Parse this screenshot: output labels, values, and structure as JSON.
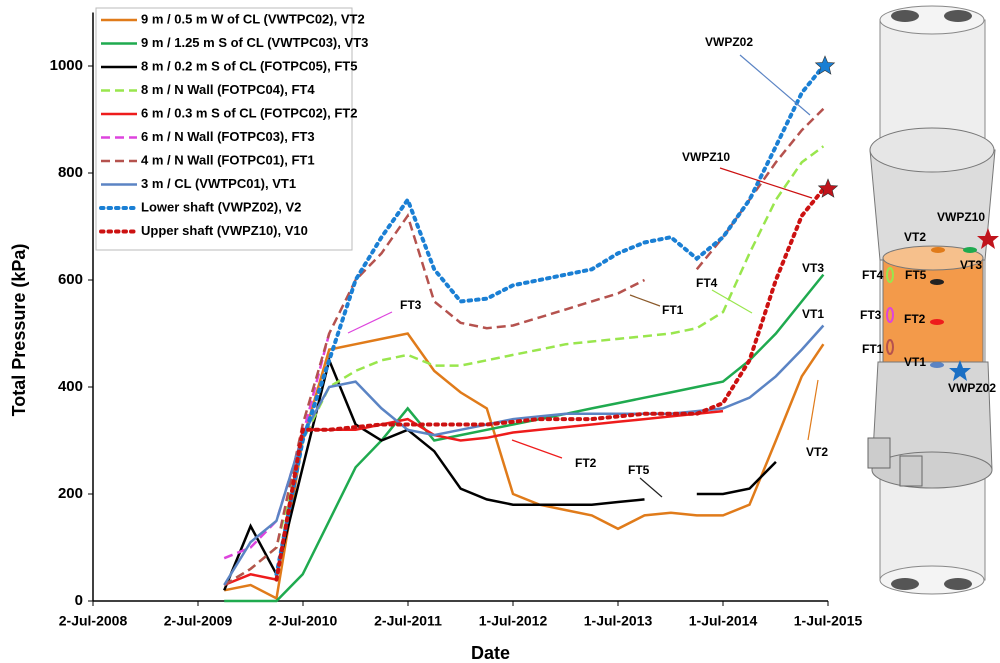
{
  "chart_data": {
    "type": "line",
    "x_label": "Date",
    "y_label": "Total Pressure (kPa)",
    "x": [
      "2009-10-01",
      "2010-01-01",
      "2010-04-01",
      "2010-07-01",
      "2010-10-01",
      "2011-01-01",
      "2011-04-01",
      "2011-07-01",
      "2011-10-01",
      "2012-01-01",
      "2012-04-01",
      "2012-07-01",
      "2012-10-01",
      "2013-01-01",
      "2013-04-01",
      "2013-07-01",
      "2013-10-01",
      "2014-01-01",
      "2014-04-01",
      "2014-07-01",
      "2014-10-01",
      "2015-01-01",
      "2015-04-01",
      "2015-06-15"
    ],
    "xlim": [
      "2008-07-02",
      "2015-07-01"
    ],
    "xticks": [
      {
        "value": "2008-07-02",
        "label": "2-Jul-2008"
      },
      {
        "value": "2009-07-02",
        "label": "2-Jul-2009"
      },
      {
        "value": "2010-07-02",
        "label": "2-Jul-2010"
      },
      {
        "value": "2011-07-02",
        "label": "2-Jul-2011"
      },
      {
        "value": "2012-07-01",
        "label": "1-Jul-2012"
      },
      {
        "value": "2013-07-01",
        "label": "1-Jul-2013"
      },
      {
        "value": "2014-07-01",
        "label": "1-Jul-2014"
      },
      {
        "value": "2015-07-01",
        "label": "1-Jul-2015"
      }
    ],
    "ylim": [
      0,
      1100
    ],
    "yticks": [
      0,
      200,
      400,
      600,
      800,
      1000
    ],
    "series": [
      {
        "name": "9 m / 0.5 m W of CL (VWTPC02), VT2",
        "color": "#e07b1a",
        "dash": "solid",
        "values": [
          20,
          30,
          5,
          300,
          470,
          480,
          490,
          500,
          430,
          390,
          360,
          200,
          180,
          170,
          160,
          135,
          160,
          165,
          160,
          160,
          180,
          300,
          420,
          480
        ]
      },
      {
        "name": "9 m / 1.25 m S of CL (VWTPC03), VT3",
        "color": "#1faa4f",
        "dash": "solid",
        "values": [
          0,
          0,
          0,
          50,
          150,
          250,
          300,
          360,
          300,
          310,
          320,
          330,
          340,
          350,
          360,
          370,
          380,
          390,
          400,
          410,
          450,
          500,
          560,
          610
        ]
      },
      {
        "name": "8 m / 0.2 m S of CL (FOTPC05), FT5",
        "color": "#000000",
        "dash": "solid",
        "values": [
          20,
          140,
          50,
          250,
          450,
          330,
          300,
          320,
          280,
          210,
          190,
          180,
          180,
          180,
          180,
          185,
          190,
          null,
          200,
          200,
          210,
          260,
          null,
          null
        ]
      },
      {
        "name": "8 m / N Wall (FOTPC04), FT4",
        "color": "#99e64d",
        "dash": "dashed",
        "values": [
          30,
          60,
          100,
          300,
          400,
          430,
          450,
          460,
          440,
          440,
          450,
          460,
          470,
          480,
          485,
          490,
          495,
          500,
          510,
          540,
          650,
          750,
          820,
          850
        ]
      },
      {
        "name": "6 m / 0.3 m S of CL (FOTPC02), FT2",
        "color": "#ee1c1c",
        "dash": "solid",
        "values": [
          30,
          50,
          40,
          320,
          320,
          320,
          330,
          340,
          310,
          300,
          305,
          315,
          320,
          325,
          330,
          335,
          340,
          345,
          350,
          355,
          null,
          null,
          null,
          null
        ]
      },
      {
        "name": "6 m / N Wall (FOTPC03), FT3",
        "color": "#dd44dd",
        "dash": "dashed",
        "values": [
          80,
          100,
          150,
          310,
          500,
          null,
          null,
          null,
          null,
          null,
          null,
          null,
          null,
          null,
          null,
          null,
          null,
          null,
          null,
          null,
          null,
          null,
          null,
          null
        ]
      },
      {
        "name": "4 m / N Wall (FOTPC01), FT1",
        "color": "#b5524e",
        "dash": "dashed",
        "values": [
          30,
          60,
          100,
          330,
          500,
          600,
          650,
          720,
          560,
          520,
          510,
          515,
          530,
          545,
          560,
          575,
          600,
          null,
          620,
          680,
          750,
          820,
          880,
          920
        ]
      },
      {
        "name": "3 m / CL (VWTPC01), VT1",
        "color": "#5b84c4",
        "dash": "solid",
        "values": [
          30,
          110,
          150,
          310,
          400,
          410,
          360,
          320,
          310,
          320,
          330,
          340,
          345,
          350,
          350,
          350,
          350,
          350,
          355,
          360,
          380,
          420,
          470,
          515
        ]
      },
      {
        "name": "Lower shaft (VWPZ02), V2",
        "color": "#1a7fd4",
        "dash": "dotted",
        "values": [
          null,
          null,
          50,
          300,
          450,
          600,
          680,
          750,
          620,
          560,
          565,
          590,
          600,
          610,
          620,
          650,
          670,
          680,
          640,
          680,
          750,
          850,
          950,
          1000
        ]
      },
      {
        "name": "Upper shaft (VWPZ10), V10",
        "color": "#cc1111",
        "dash": "dotted",
        "values": [
          null,
          null,
          40,
          320,
          320,
          325,
          330,
          330,
          330,
          330,
          330,
          335,
          340,
          340,
          340,
          345,
          350,
          350,
          350,
          370,
          450,
          600,
          720,
          770
        ]
      }
    ],
    "annotations": [
      "VWPZ02",
      "VWPZ10",
      "FT3",
      "FT1",
      "FT4",
      "VT3",
      "VT1",
      "VT2",
      "FT2",
      "FT5"
    ]
  },
  "diagram": {
    "labels": [
      "VWPZ10",
      "VT2",
      "VT3",
      "FT4",
      "FT5",
      "FT3",
      "FT2",
      "FT1",
      "VT1",
      "VWPZ02"
    ]
  }
}
